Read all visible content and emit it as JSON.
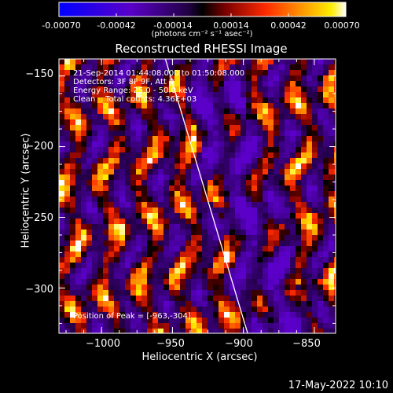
{
  "colorbar": {
    "ticks": [
      "-0.00070",
      "-0.00042",
      "-0.00014",
      "0.00014",
      "0.00042",
      "0.00070"
    ],
    "unit": "(photons cm⁻² s⁻¹ asec⁻²)",
    "range": [
      -0.0007,
      0.0007
    ],
    "colors": {
      "negative_low": "#0000ff",
      "negative_mid": "#6600aa",
      "zero": "#000000",
      "low": "#7a0000",
      "mid": "#ff2a00",
      "high": "#ffcc00",
      "max": "#ffffff"
    }
  },
  "chart_data": {
    "type": "heatmap",
    "title": "Reconstructed RHESSI Image",
    "xlabel": "Heliocentric X (arcsec)",
    "ylabel": "Heliocentric Y (arcsec)",
    "xlim": [
      -1030,
      -835
    ],
    "ylim": [
      -332,
      -138
    ],
    "xticks": [
      -1000,
      -950,
      -900,
      -850
    ],
    "yticks": [
      -150,
      -200,
      -250,
      -300
    ],
    "xtick_labels": [
      "−1000",
      "−950",
      "−900",
      "−850"
    ],
    "ytick_labels": [
      "−150",
      "−200",
      "−250",
      "−300"
    ],
    "limb_line": {
      "x": [
        -955,
        -897
      ],
      "y": [
        -138,
        -332
      ]
    },
    "peak": {
      "x": -963,
      "y": -304
    }
  },
  "annotations": {
    "time": "21-Sep-2014 01:44:08.000 to 01:50:08.000",
    "detectors": "Detectors: 3F 8F 9F, Att 0",
    "energy": "Energy Range: 25.0 - 50.0 keV",
    "clean": "Clean    Total counts: 4.36E+03",
    "peak_text": "Position of Peak = [-963,-304]"
  },
  "footer": {
    "date": "17-May-2022 10:10"
  }
}
